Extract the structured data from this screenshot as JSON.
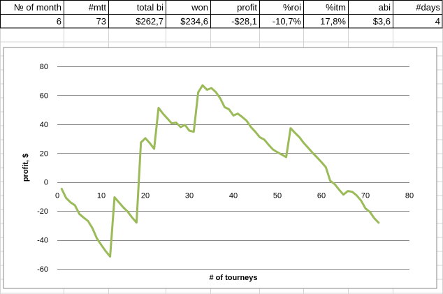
{
  "table": {
    "headers": [
      "№ of month",
      "#mtt",
      "total bi",
      "won",
      "profit",
      "%roi",
      "%itm",
      "abi",
      "#days"
    ],
    "values": [
      "6",
      "73",
      "$262,7",
      "$234,6",
      "-$28,1",
      "-10,7%",
      "17,8%",
      "$3,6",
      "4"
    ]
  },
  "colors": {
    "series": "#9bbb59",
    "grid": "#878787",
    "cell_grid": "#d4d4d4",
    "table_border": "#000000"
  },
  "chart_data": {
    "type": "line",
    "xlabel": "# of tourneys",
    "ylabel": "profit, $",
    "xlim": [
      0,
      80
    ],
    "ylim": [
      -60,
      80
    ],
    "xticks": [
      0,
      10,
      20,
      30,
      40,
      50,
      60,
      70,
      80
    ],
    "yticks": [
      -60,
      -40,
      -20,
      0,
      20,
      40,
      60,
      80
    ],
    "grid": "horizontal",
    "legend": "none",
    "series": [
      {
        "x": [
          1,
          2,
          3,
          4,
          5,
          6,
          7,
          8,
          9,
          10,
          11,
          12,
          13,
          14,
          15,
          16,
          17,
          18,
          19,
          20,
          21,
          22,
          23,
          24,
          25,
          26,
          27,
          28,
          29,
          30,
          31,
          32,
          33,
          34,
          35,
          36,
          37,
          38,
          39,
          40,
          41,
          42,
          43,
          44,
          45,
          46,
          47,
          48,
          49,
          50,
          51,
          52,
          53,
          54,
          55,
          56,
          57,
          58,
          59,
          60,
          61,
          62,
          63,
          64,
          65,
          66,
          67,
          68,
          69,
          70,
          71,
          72,
          73
        ],
        "y": [
          -4.7,
          -11,
          -14,
          -16,
          -22,
          -24.6,
          -27,
          -32,
          -39,
          -43.5,
          -47.8,
          -51.5,
          -10.5,
          -14,
          -17.5,
          -20.5,
          -24.5,
          -28,
          27.4,
          30.3,
          27,
          23,
          51.3,
          47.3,
          44,
          40.6,
          41.1,
          38,
          39.5,
          35.5,
          34.8,
          62,
          66.9,
          63.8,
          65,
          62.3,
          58,
          51.8,
          50.3,
          46,
          47.3,
          45,
          42.4,
          38,
          34.7,
          31,
          29.4,
          25.8,
          22.5,
          20.6,
          19,
          17.3,
          37.3,
          34,
          31,
          27,
          23.6,
          20.2,
          17.1,
          13.8,
          10.3,
          0.9,
          -1.4,
          -5.2,
          -8.7,
          -6.2,
          -6.7,
          -9.2,
          -12.8,
          -18.2,
          -20.6,
          -25,
          -28.1
        ]
      }
    ]
  }
}
